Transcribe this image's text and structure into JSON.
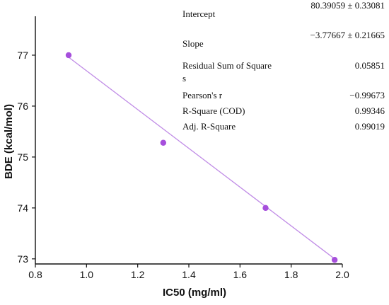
{
  "chart_data": {
    "type": "scatter",
    "xlabel": "IC50 (mg/ml)",
    "ylabel": "BDE (kcal/mol)",
    "xlim": [
      0.8,
      2.0
    ],
    "ylim": [
      72.9,
      77.75
    ],
    "x_ticks": [
      "0.8",
      "1.0",
      "1.2",
      "1.4",
      "1.6",
      "1.8",
      "2.0"
    ],
    "y_ticks": [
      "73",
      "74",
      "75",
      "76",
      "77"
    ],
    "grid": false,
    "series": [
      {
        "x": [
          0.93,
          1.3,
          1.7,
          1.97
        ],
        "y": [
          77.0,
          75.28,
          74.0,
          72.98
        ],
        "color": "#a64fdc"
      }
    ],
    "fit_line": {
      "x": [
        0.93,
        1.97
      ],
      "y": [
        76.96,
        73.0
      ],
      "color": "#c08ce6"
    },
    "annotations": [
      {
        "label": "Intercept",
        "value": "80.39059 ± 0.33081"
      },
      {
        "label": "Slope",
        "value": "−3.77667 ± 0.21665"
      },
      {
        "label": "Residual Sum of Square\ns",
        "value": "0.05851"
      },
      {
        "label": "Pearson's r",
        "value": "−0.99673"
      },
      {
        "label": "R-Square (COD)",
        "value": "0.99346"
      },
      {
        "label": "Adj. R-Square",
        "value": "0.99019"
      }
    ]
  }
}
